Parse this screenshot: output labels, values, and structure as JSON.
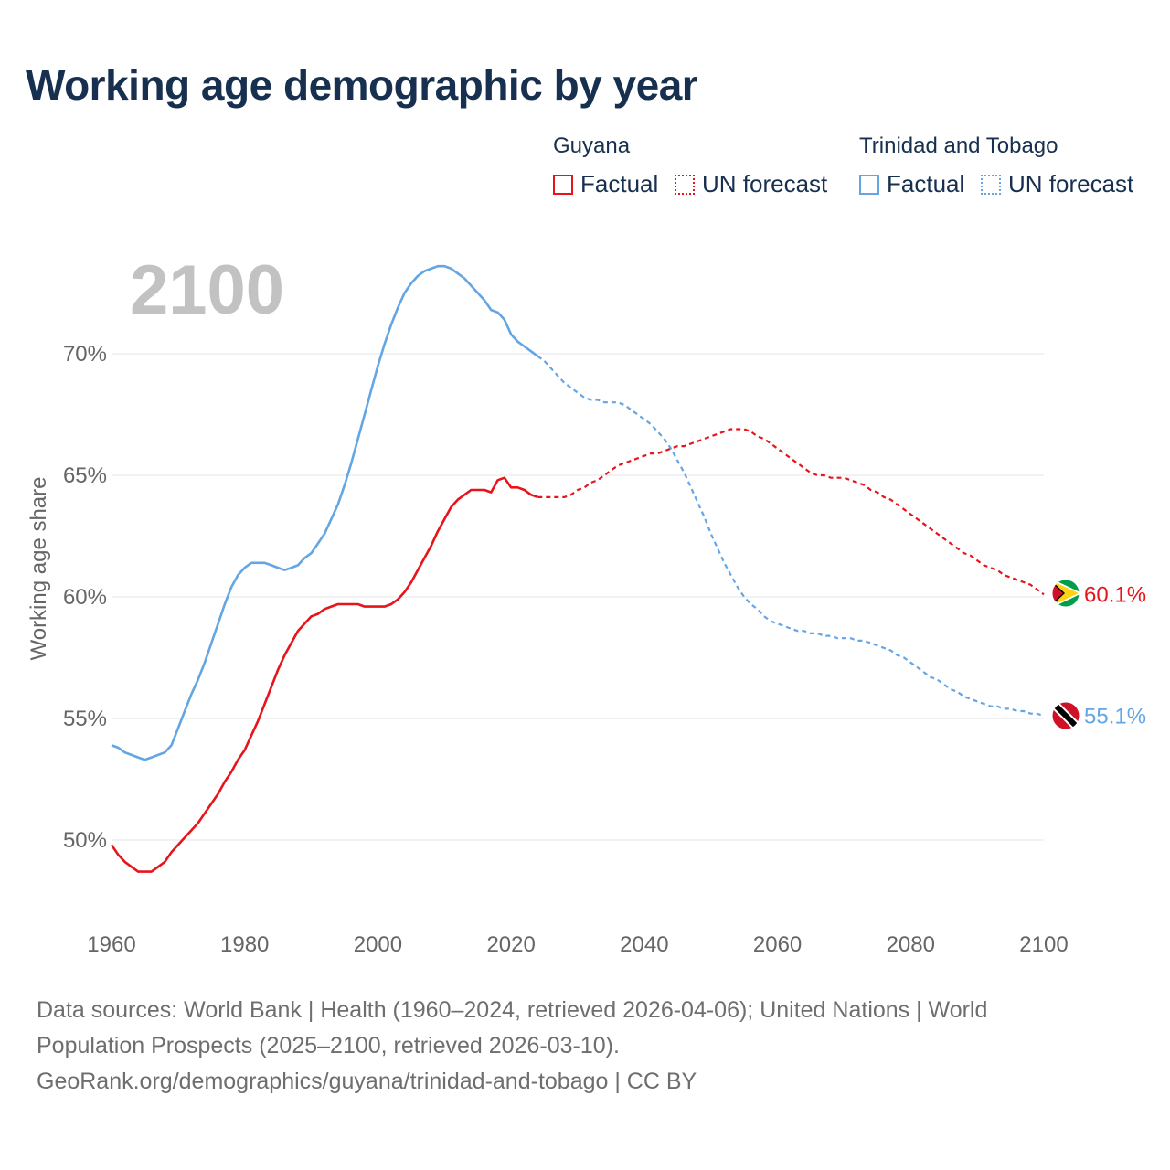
{
  "title": "Working age demographic by year",
  "legend": {
    "groups": [
      {
        "name": "Guyana",
        "color": "#e8141b",
        "factual_label": "Factual",
        "forecast_label": "UN forecast"
      },
      {
        "name": "Trinidad and Tobago",
        "color": "#63a6e3",
        "factual_label": "Factual",
        "forecast_label": "UN forecast"
      }
    ]
  },
  "year_watermark": "2100",
  "footer": {
    "line1": "Data sources: World Bank | Health (1960–2024, retrieved 2026-04-06); United Nations | World",
    "line2": "Population Prospects (2025–2100, retrieved 2026-03-10).",
    "line3": "GeoRank.org/demographics/guyana/trinidad-and-tobago | CC BY"
  },
  "chart_data": {
    "type": "line",
    "title": "Working age demographic by year",
    "xlabel": "",
    "ylabel": "Working age share",
    "xlim": [
      1960,
      2100
    ],
    "ylim": [
      46.5,
      75
    ],
    "x_ticks": [
      1960,
      1980,
      2000,
      2020,
      2040,
      2060,
      2080,
      2100
    ],
    "x_tick_labels": [
      "1960",
      "1980",
      "2000",
      "2020",
      "2040",
      "2060",
      "2080",
      "2100"
    ],
    "y_ticks": [
      50,
      55,
      60,
      65,
      70
    ],
    "y_tick_labels": [
      "50%",
      "55%",
      "60%",
      "65%",
      "70%"
    ],
    "grid": true,
    "factual_end_year": 2024,
    "series": [
      {
        "name": "Guyana",
        "color": "#e8141b",
        "end_label": "60.1%",
        "points": [
          [
            1960,
            49.8
          ],
          [
            1961,
            49.4
          ],
          [
            1962,
            49.1
          ],
          [
            1963,
            48.9
          ],
          [
            1964,
            48.7
          ],
          [
            1965,
            48.7
          ],
          [
            1966,
            48.7
          ],
          [
            1967,
            48.9
          ],
          [
            1968,
            49.1
          ],
          [
            1969,
            49.5
          ],
          [
            1970,
            49.8
          ],
          [
            1971,
            50.1
          ],
          [
            1972,
            50.4
          ],
          [
            1973,
            50.7
          ],
          [
            1974,
            51.1
          ],
          [
            1975,
            51.5
          ],
          [
            1976,
            51.9
          ],
          [
            1977,
            52.4
          ],
          [
            1978,
            52.8
          ],
          [
            1979,
            53.3
          ],
          [
            1980,
            53.7
          ],
          [
            1981,
            54.3
          ],
          [
            1982,
            54.9
          ],
          [
            1983,
            55.6
          ],
          [
            1984,
            56.3
          ],
          [
            1985,
            57.0
          ],
          [
            1986,
            57.6
          ],
          [
            1987,
            58.1
          ],
          [
            1988,
            58.6
          ],
          [
            1989,
            58.9
          ],
          [
            1990,
            59.2
          ],
          [
            1991,
            59.3
          ],
          [
            1992,
            59.5
          ],
          [
            1993,
            59.6
          ],
          [
            1994,
            59.7
          ],
          [
            1995,
            59.7
          ],
          [
            1996,
            59.7
          ],
          [
            1997,
            59.7
          ],
          [
            1998,
            59.6
          ],
          [
            1999,
            59.6
          ],
          [
            2000,
            59.6
          ],
          [
            2001,
            59.6
          ],
          [
            2002,
            59.7
          ],
          [
            2003,
            59.9
          ],
          [
            2004,
            60.2
          ],
          [
            2005,
            60.6
          ],
          [
            2006,
            61.1
          ],
          [
            2007,
            61.6
          ],
          [
            2008,
            62.1
          ],
          [
            2009,
            62.7
          ],
          [
            2010,
            63.2
          ],
          [
            2011,
            63.7
          ],
          [
            2012,
            64.0
          ],
          [
            2013,
            64.2
          ],
          [
            2014,
            64.4
          ],
          [
            2015,
            64.4
          ],
          [
            2016,
            64.4
          ],
          [
            2017,
            64.3
          ],
          [
            2018,
            64.8
          ],
          [
            2019,
            64.9
          ],
          [
            2020,
            64.5
          ],
          [
            2021,
            64.5
          ],
          [
            2022,
            64.4
          ],
          [
            2023,
            64.2
          ],
          [
            2024,
            64.1
          ],
          [
            2025,
            64.1
          ],
          [
            2026,
            64.1
          ],
          [
            2027,
            64.1
          ],
          [
            2028,
            64.1
          ],
          [
            2029,
            64.2
          ],
          [
            2030,
            64.4
          ],
          [
            2031,
            64.5
          ],
          [
            2032,
            64.7
          ],
          [
            2033,
            64.8
          ],
          [
            2034,
            65.0
          ],
          [
            2035,
            65.2
          ],
          [
            2036,
            65.4
          ],
          [
            2037,
            65.5
          ],
          [
            2038,
            65.6
          ],
          [
            2039,
            65.7
          ],
          [
            2040,
            65.8
          ],
          [
            2041,
            65.9
          ],
          [
            2042,
            65.9
          ],
          [
            2043,
            66.0
          ],
          [
            2044,
            66.1
          ],
          [
            2045,
            66.2
          ],
          [
            2046,
            66.2
          ],
          [
            2047,
            66.3
          ],
          [
            2048,
            66.4
          ],
          [
            2049,
            66.5
          ],
          [
            2050,
            66.6
          ],
          [
            2051,
            66.7
          ],
          [
            2052,
            66.8
          ],
          [
            2053,
            66.9
          ],
          [
            2054,
            66.9
          ],
          [
            2055,
            66.9
          ],
          [
            2056,
            66.8
          ],
          [
            2057,
            66.6
          ],
          [
            2058,
            66.5
          ],
          [
            2059,
            66.3
          ],
          [
            2060,
            66.1
          ],
          [
            2061,
            65.9
          ],
          [
            2062,
            65.7
          ],
          [
            2063,
            65.5
          ],
          [
            2064,
            65.3
          ],
          [
            2065,
            65.1
          ],
          [
            2066,
            65.0
          ],
          [
            2067,
            65.0
          ],
          [
            2068,
            64.9
          ],
          [
            2069,
            64.9
          ],
          [
            2070,
            64.9
          ],
          [
            2071,
            64.8
          ],
          [
            2072,
            64.7
          ],
          [
            2073,
            64.6
          ],
          [
            2074,
            64.4
          ],
          [
            2075,
            64.3
          ],
          [
            2076,
            64.1
          ],
          [
            2077,
            64.0
          ],
          [
            2078,
            63.8
          ],
          [
            2079,
            63.6
          ],
          [
            2080,
            63.4
          ],
          [
            2081,
            63.2
          ],
          [
            2082,
            63.0
          ],
          [
            2083,
            62.8
          ],
          [
            2084,
            62.6
          ],
          [
            2085,
            62.4
          ],
          [
            2086,
            62.2
          ],
          [
            2087,
            62.0
          ],
          [
            2088,
            61.8
          ],
          [
            2089,
            61.7
          ],
          [
            2090,
            61.5
          ],
          [
            2091,
            61.3
          ],
          [
            2092,
            61.2
          ],
          [
            2093,
            61.1
          ],
          [
            2094,
            60.9
          ],
          [
            2095,
            60.8
          ],
          [
            2096,
            60.7
          ],
          [
            2097,
            60.6
          ],
          [
            2098,
            60.5
          ],
          [
            2099,
            60.3
          ],
          [
            2100,
            60.1
          ]
        ]
      },
      {
        "name": "Trinidad and Tobago",
        "color": "#63a6e3",
        "end_label": "55.1%",
        "points": [
          [
            1960,
            53.9
          ],
          [
            1961,
            53.8
          ],
          [
            1962,
            53.6
          ],
          [
            1963,
            53.5
          ],
          [
            1964,
            53.4
          ],
          [
            1965,
            53.3
          ],
          [
            1966,
            53.4
          ],
          [
            1967,
            53.5
          ],
          [
            1968,
            53.6
          ],
          [
            1969,
            53.9
          ],
          [
            1970,
            54.6
          ],
          [
            1971,
            55.3
          ],
          [
            1972,
            56.0
          ],
          [
            1973,
            56.6
          ],
          [
            1974,
            57.3
          ],
          [
            1975,
            58.1
          ],
          [
            1976,
            58.9
          ],
          [
            1977,
            59.7
          ],
          [
            1978,
            60.4
          ],
          [
            1979,
            60.9
          ],
          [
            1980,
            61.2
          ],
          [
            1981,
            61.4
          ],
          [
            1982,
            61.4
          ],
          [
            1983,
            61.4
          ],
          [
            1984,
            61.3
          ],
          [
            1985,
            61.2
          ],
          [
            1986,
            61.1
          ],
          [
            1987,
            61.2
          ],
          [
            1988,
            61.3
          ],
          [
            1989,
            61.6
          ],
          [
            1990,
            61.8
          ],
          [
            1991,
            62.2
          ],
          [
            1992,
            62.6
          ],
          [
            1993,
            63.2
          ],
          [
            1994,
            63.8
          ],
          [
            1995,
            64.6
          ],
          [
            1996,
            65.5
          ],
          [
            1997,
            66.5
          ],
          [
            1998,
            67.5
          ],
          [
            1999,
            68.5
          ],
          [
            2000,
            69.5
          ],
          [
            2001,
            70.4
          ],
          [
            2002,
            71.2
          ],
          [
            2003,
            71.9
          ],
          [
            2004,
            72.5
          ],
          [
            2005,
            72.9
          ],
          [
            2006,
            73.2
          ],
          [
            2007,
            73.4
          ],
          [
            2008,
            73.5
          ],
          [
            2009,
            73.6
          ],
          [
            2010,
            73.6
          ],
          [
            2011,
            73.5
          ],
          [
            2012,
            73.3
          ],
          [
            2013,
            73.1
          ],
          [
            2014,
            72.8
          ],
          [
            2015,
            72.5
          ],
          [
            2016,
            72.2
          ],
          [
            2017,
            71.8
          ],
          [
            2018,
            71.7
          ],
          [
            2019,
            71.4
          ],
          [
            2020,
            70.8
          ],
          [
            2021,
            70.5
          ],
          [
            2022,
            70.3
          ],
          [
            2023,
            70.1
          ],
          [
            2024,
            69.9
          ],
          [
            2025,
            69.7
          ],
          [
            2026,
            69.4
          ],
          [
            2027,
            69.1
          ],
          [
            2028,
            68.8
          ],
          [
            2029,
            68.6
          ],
          [
            2030,
            68.4
          ],
          [
            2031,
            68.2
          ],
          [
            2032,
            68.1
          ],
          [
            2033,
            68.1
          ],
          [
            2034,
            68.0
          ],
          [
            2035,
            68.0
          ],
          [
            2036,
            68.0
          ],
          [
            2037,
            67.9
          ],
          [
            2038,
            67.7
          ],
          [
            2039,
            67.5
          ],
          [
            2040,
            67.3
          ],
          [
            2041,
            67.1
          ],
          [
            2042,
            66.8
          ],
          [
            2043,
            66.5
          ],
          [
            2044,
            66.1
          ],
          [
            2045,
            65.6
          ],
          [
            2046,
            65.1
          ],
          [
            2047,
            64.5
          ],
          [
            2048,
            63.9
          ],
          [
            2049,
            63.3
          ],
          [
            2050,
            62.6
          ],
          [
            2051,
            62.0
          ],
          [
            2052,
            61.4
          ],
          [
            2053,
            60.9
          ],
          [
            2054,
            60.4
          ],
          [
            2055,
            60.0
          ],
          [
            2056,
            59.7
          ],
          [
            2057,
            59.5
          ],
          [
            2058,
            59.2
          ],
          [
            2059,
            59.0
          ],
          [
            2060,
            58.9
          ],
          [
            2061,
            58.8
          ],
          [
            2062,
            58.7
          ],
          [
            2063,
            58.6
          ],
          [
            2064,
            58.6
          ],
          [
            2065,
            58.5
          ],
          [
            2066,
            58.5
          ],
          [
            2067,
            58.4
          ],
          [
            2068,
            58.4
          ],
          [
            2069,
            58.3
          ],
          [
            2070,
            58.3
          ],
          [
            2071,
            58.3
          ],
          [
            2072,
            58.2
          ],
          [
            2073,
            58.2
          ],
          [
            2074,
            58.1
          ],
          [
            2075,
            58.0
          ],
          [
            2076,
            57.9
          ],
          [
            2077,
            57.8
          ],
          [
            2078,
            57.6
          ],
          [
            2079,
            57.5
          ],
          [
            2080,
            57.3
          ],
          [
            2081,
            57.1
          ],
          [
            2082,
            56.9
          ],
          [
            2083,
            56.7
          ],
          [
            2084,
            56.6
          ],
          [
            2085,
            56.4
          ],
          [
            2086,
            56.2
          ],
          [
            2087,
            56.1
          ],
          [
            2088,
            55.9
          ],
          [
            2089,
            55.8
          ],
          [
            2090,
            55.7
          ],
          [
            2091,
            55.6
          ],
          [
            2092,
            55.5
          ],
          [
            2093,
            55.5
          ],
          [
            2094,
            55.4
          ],
          [
            2095,
            55.4
          ],
          [
            2096,
            55.3
          ],
          [
            2097,
            55.3
          ],
          [
            2098,
            55.2
          ],
          [
            2099,
            55.2
          ],
          [
            2100,
            55.1
          ]
        ]
      }
    ]
  }
}
